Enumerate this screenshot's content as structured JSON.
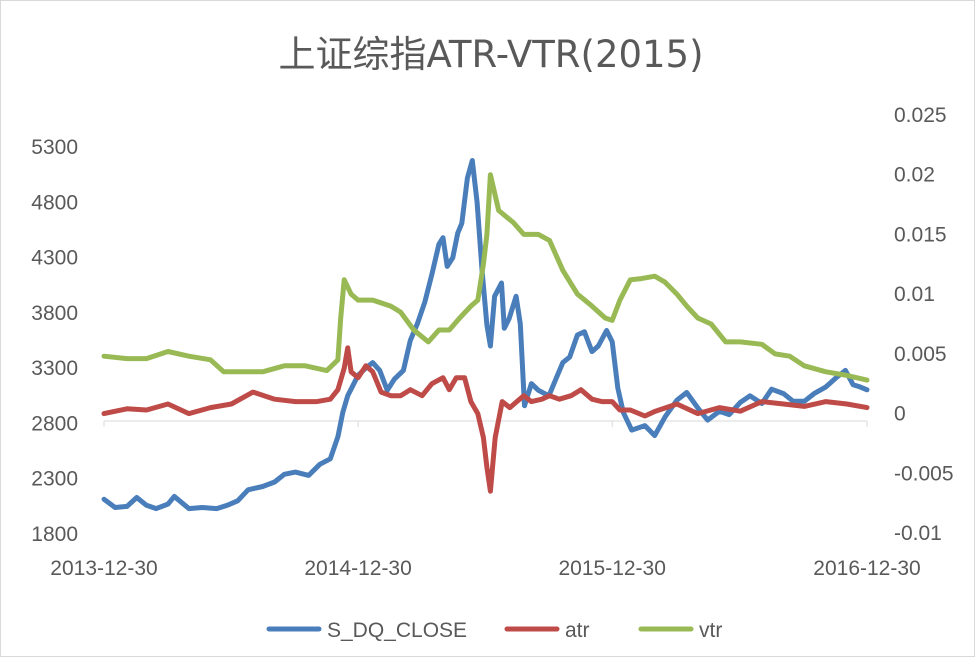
{
  "chart_data": {
    "type": "line",
    "title": "上证综指ATR-VTR(2015)",
    "x_ticks": [
      "2013-12-30",
      "2014-12-30",
      "2015-12-30",
      "2016-12-30"
    ],
    "y_left": {
      "min": 1800,
      "max": 5300,
      "ticks": [
        "1800",
        "2300",
        "2800",
        "3300",
        "3800",
        "4300",
        "4800",
        "5300"
      ]
    },
    "y_right": {
      "min": -0.01,
      "max": 0.025,
      "ticks": [
        "-0.01",
        "-0.005",
        "0",
        "0.005",
        "0.01",
        "0.015",
        "0.02",
        "0.025"
      ]
    },
    "legend_position": "bottom",
    "grid": false,
    "series": [
      {
        "name": "S_DQ_CLOSE",
        "axis": "left",
        "color": "#4a7ebb",
        "points": [
          [
            "2013-12-30",
            2115
          ],
          [
            "2014-01-15",
            2040
          ],
          [
            "2014-02-01",
            2050
          ],
          [
            "2014-02-15",
            2130
          ],
          [
            "2014-03-01",
            2060
          ],
          [
            "2014-03-15",
            2030
          ],
          [
            "2014-04-01",
            2070
          ],
          [
            "2014-04-10",
            2140
          ],
          [
            "2014-05-01",
            2030
          ],
          [
            "2014-05-20",
            2040
          ],
          [
            "2014-06-10",
            2030
          ],
          [
            "2014-06-25",
            2060
          ],
          [
            "2014-07-10",
            2100
          ],
          [
            "2014-07-25",
            2200
          ],
          [
            "2014-08-15",
            2230
          ],
          [
            "2014-09-01",
            2270
          ],
          [
            "2014-09-15",
            2340
          ],
          [
            "2014-10-01",
            2360
          ],
          [
            "2014-10-20",
            2330
          ],
          [
            "2014-11-05",
            2430
          ],
          [
            "2014-11-20",
            2480
          ],
          [
            "2014-12-01",
            2680
          ],
          [
            "2014-12-08",
            2900
          ],
          [
            "2014-12-15",
            3050
          ],
          [
            "2014-12-30",
            3235
          ],
          [
            "2015-01-10",
            3300
          ],
          [
            "2015-01-20",
            3350
          ],
          [
            "2015-01-30",
            3280
          ],
          [
            "2015-02-10",
            3100
          ],
          [
            "2015-02-20",
            3200
          ],
          [
            "2015-03-05",
            3280
          ],
          [
            "2015-03-15",
            3550
          ],
          [
            "2015-03-25",
            3700
          ],
          [
            "2015-04-05",
            3900
          ],
          [
            "2015-04-15",
            4150
          ],
          [
            "2015-04-25",
            4420
          ],
          [
            "2015-05-01",
            4480
          ],
          [
            "2015-05-07",
            4220
          ],
          [
            "2015-05-15",
            4300
          ],
          [
            "2015-05-22",
            4520
          ],
          [
            "2015-05-28",
            4610
          ],
          [
            "2015-06-05",
            5020
          ],
          [
            "2015-06-12",
            5178
          ],
          [
            "2015-06-19",
            4800
          ],
          [
            "2015-06-26",
            4190
          ],
          [
            "2015-07-03",
            3690
          ],
          [
            "2015-07-08",
            3500
          ],
          [
            "2015-07-14",
            3950
          ],
          [
            "2015-07-24",
            4070
          ],
          [
            "2015-07-28",
            3660
          ],
          [
            "2015-08-04",
            3750
          ],
          [
            "2015-08-14",
            3950
          ],
          [
            "2015-08-20",
            3700
          ],
          [
            "2015-08-26",
            2960
          ],
          [
            "2015-09-05",
            3160
          ],
          [
            "2015-09-15",
            3100
          ],
          [
            "2015-09-30",
            3050
          ],
          [
            "2015-10-10",
            3200
          ],
          [
            "2015-10-20",
            3350
          ],
          [
            "2015-10-30",
            3400
          ],
          [
            "2015-11-10",
            3600
          ],
          [
            "2015-11-20",
            3630
          ],
          [
            "2015-12-01",
            3450
          ],
          [
            "2015-12-10",
            3500
          ],
          [
            "2015-12-22",
            3640
          ],
          [
            "2015-12-30",
            3539
          ],
          [
            "2016-01-07",
            3120
          ],
          [
            "2016-01-15",
            2900
          ],
          [
            "2016-01-27",
            2740
          ],
          [
            "2016-02-15",
            2780
          ],
          [
            "2016-02-29",
            2690
          ],
          [
            "2016-03-15",
            2860
          ],
          [
            "2016-04-01",
            3010
          ],
          [
            "2016-04-15",
            3080
          ],
          [
            "2016-05-01",
            2940
          ],
          [
            "2016-05-15",
            2830
          ],
          [
            "2016-06-01",
            2910
          ],
          [
            "2016-06-15",
            2880
          ],
          [
            "2016-07-01",
            2990
          ],
          [
            "2016-07-15",
            3050
          ],
          [
            "2016-08-01",
            2980
          ],
          [
            "2016-08-15",
            3110
          ],
          [
            "2016-09-01",
            3070
          ],
          [
            "2016-09-15",
            3000
          ],
          [
            "2016-10-01",
            3000
          ],
          [
            "2016-10-15",
            3070
          ],
          [
            "2016-11-01",
            3130
          ],
          [
            "2016-11-15",
            3210
          ],
          [
            "2016-11-29",
            3280
          ],
          [
            "2016-12-10",
            3150
          ],
          [
            "2016-12-20",
            3130
          ],
          [
            "2016-12-30",
            3104
          ]
        ]
      },
      {
        "name": "atr",
        "axis": "right",
        "color": "#be4b48",
        "points": [
          [
            "2013-12-30",
            0.0
          ],
          [
            "2014-02-01",
            0.0004
          ],
          [
            "2014-03-01",
            0.0003
          ],
          [
            "2014-04-01",
            0.0008
          ],
          [
            "2014-05-01",
            0.0
          ],
          [
            "2014-06-01",
            0.0005
          ],
          [
            "2014-07-01",
            0.0008
          ],
          [
            "2014-08-01",
            0.0018
          ],
          [
            "2014-09-01",
            0.0012
          ],
          [
            "2014-10-01",
            0.001
          ],
          [
            "2014-11-01",
            0.001
          ],
          [
            "2014-11-20",
            0.0012
          ],
          [
            "2014-12-01",
            0.002
          ],
          [
            "2014-12-10",
            0.0038
          ],
          [
            "2014-12-15",
            0.0055
          ],
          [
            "2014-12-20",
            0.0035
          ],
          [
            "2014-12-30",
            0.003
          ],
          [
            "2015-01-10",
            0.004
          ],
          [
            "2015-01-20",
            0.0035
          ],
          [
            "2015-02-01",
            0.0018
          ],
          [
            "2015-02-15",
            0.0015
          ],
          [
            "2015-03-01",
            0.0015
          ],
          [
            "2015-03-15",
            0.002
          ],
          [
            "2015-04-01",
            0.0015
          ],
          [
            "2015-04-15",
            0.0025
          ],
          [
            "2015-05-01",
            0.003
          ],
          [
            "2015-05-10",
            0.002
          ],
          [
            "2015-05-20",
            0.003
          ],
          [
            "2015-06-01",
            0.003
          ],
          [
            "2015-06-10",
            0.001
          ],
          [
            "2015-06-20",
            0.0
          ],
          [
            "2015-06-28",
            -0.002
          ],
          [
            "2015-07-03",
            -0.0045
          ],
          [
            "2015-07-08",
            -0.0065
          ],
          [
            "2015-07-15",
            -0.002
          ],
          [
            "2015-07-25",
            0.001
          ],
          [
            "2015-08-05",
            0.0005
          ],
          [
            "2015-08-15",
            0.001
          ],
          [
            "2015-08-25",
            0.0015
          ],
          [
            "2015-09-05",
            0.001
          ],
          [
            "2015-09-20",
            0.0012
          ],
          [
            "2015-10-01",
            0.0015
          ],
          [
            "2015-10-15",
            0.0012
          ],
          [
            "2015-11-01",
            0.0015
          ],
          [
            "2015-11-15",
            0.002
          ],
          [
            "2015-12-01",
            0.0012
          ],
          [
            "2015-12-15",
            0.001
          ],
          [
            "2015-12-30",
            0.001
          ],
          [
            "2016-01-10",
            0.0003
          ],
          [
            "2016-01-25",
            0.0003
          ],
          [
            "2016-02-15",
            -0.0002
          ],
          [
            "2016-03-01",
            0.0002
          ],
          [
            "2016-04-01",
            0.0008
          ],
          [
            "2016-05-01",
            0.0
          ],
          [
            "2016-06-01",
            0.0005
          ],
          [
            "2016-07-01",
            0.0002
          ],
          [
            "2016-08-01",
            0.001
          ],
          [
            "2016-09-01",
            0.0008
          ],
          [
            "2016-10-01",
            0.0006
          ],
          [
            "2016-11-01",
            0.001
          ],
          [
            "2016-12-01",
            0.0008
          ],
          [
            "2016-12-30",
            0.0005
          ]
        ]
      },
      {
        "name": "vtr",
        "axis": "right",
        "color": "#98b954",
        "points": [
          [
            "2013-12-30",
            0.0048
          ],
          [
            "2014-02-01",
            0.0046
          ],
          [
            "2014-03-01",
            0.0046
          ],
          [
            "2014-04-01",
            0.0052
          ],
          [
            "2014-05-01",
            0.0048
          ],
          [
            "2014-06-01",
            0.0045
          ],
          [
            "2014-06-20",
            0.0035
          ],
          [
            "2014-07-15",
            0.0035
          ],
          [
            "2014-08-15",
            0.0035
          ],
          [
            "2014-09-15",
            0.004
          ],
          [
            "2014-10-15",
            0.004
          ],
          [
            "2014-11-15",
            0.0036
          ],
          [
            "2014-12-01",
            0.0045
          ],
          [
            "2014-12-05",
            0.008
          ],
          [
            "2014-12-10",
            0.0112
          ],
          [
            "2014-12-20",
            0.01
          ],
          [
            "2014-12-30",
            0.0095
          ],
          [
            "2015-01-20",
            0.0095
          ],
          [
            "2015-02-15",
            0.009
          ],
          [
            "2015-03-01",
            0.0085
          ],
          [
            "2015-03-20",
            0.007
          ],
          [
            "2015-04-10",
            0.006
          ],
          [
            "2015-04-25",
            0.007
          ],
          [
            "2015-05-10",
            0.007
          ],
          [
            "2015-05-25",
            0.008
          ],
          [
            "2015-06-10",
            0.009
          ],
          [
            "2015-06-20",
            0.0095
          ],
          [
            "2015-06-28",
            0.0125
          ],
          [
            "2015-07-03",
            0.015
          ],
          [
            "2015-07-08",
            0.02
          ],
          [
            "2015-07-20",
            0.017
          ],
          [
            "2015-08-10",
            0.016
          ],
          [
            "2015-08-25",
            0.015
          ],
          [
            "2015-09-15",
            0.015
          ],
          [
            "2015-10-01",
            0.0145
          ],
          [
            "2015-10-20",
            0.012
          ],
          [
            "2015-11-10",
            0.01
          ],
          [
            "2015-12-01",
            0.009
          ],
          [
            "2015-12-20",
            0.008
          ],
          [
            "2015-12-30",
            0.0078
          ],
          [
            "2016-01-10",
            0.0095
          ],
          [
            "2016-01-25",
            0.0112
          ],
          [
            "2016-02-10",
            0.0113
          ],
          [
            "2016-02-29",
            0.0115
          ],
          [
            "2016-03-15",
            0.011
          ],
          [
            "2016-04-01",
            0.01
          ],
          [
            "2016-04-15",
            0.009
          ],
          [
            "2016-05-01",
            0.008
          ],
          [
            "2016-05-20",
            0.0075
          ],
          [
            "2016-06-10",
            0.006
          ],
          [
            "2016-07-01",
            0.006
          ],
          [
            "2016-08-01",
            0.0058
          ],
          [
            "2016-08-20",
            0.005
          ],
          [
            "2016-09-10",
            0.0048
          ],
          [
            "2016-10-01",
            0.004
          ],
          [
            "2016-11-01",
            0.0035
          ],
          [
            "2016-12-01",
            0.0032
          ],
          [
            "2016-12-30",
            0.0028
          ]
        ]
      }
    ]
  }
}
